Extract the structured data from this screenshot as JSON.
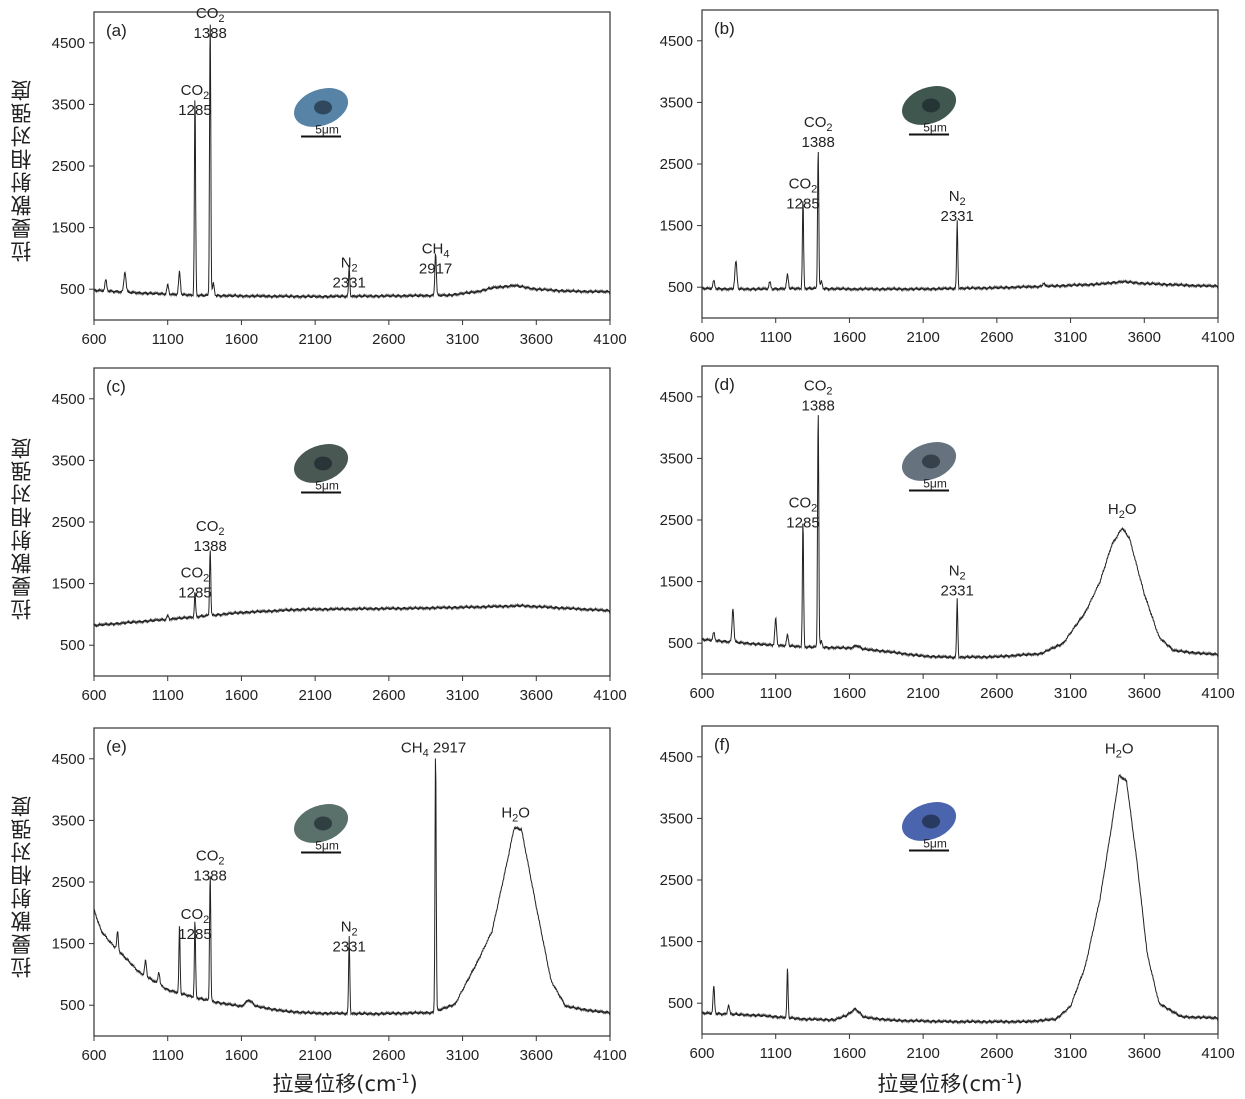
{
  "figure": {
    "ylabel": "拉曼散射相对强度",
    "xlabel_base": "拉曼位移(cm",
    "xlabel_sup": "-1",
    "xlabel_close": ")"
  },
  "chart_data": [
    {
      "type": "line",
      "panel": "(a)",
      "scale_label": "5μm",
      "xlim": [
        600,
        4100
      ],
      "ylim": [
        0,
        5000
      ],
      "xticks": [
        600,
        1100,
        1600,
        2100,
        2600,
        3100,
        3600,
        4100
      ],
      "yticks": [
        500,
        1500,
        2500,
        3500,
        4500
      ],
      "background": [
        [
          600,
          480
        ],
        [
          700,
          470
        ],
        [
          900,
          440
        ],
        [
          1100,
          420
        ],
        [
          1300,
          400
        ],
        [
          1600,
          390
        ],
        [
          2100,
          380
        ],
        [
          2600,
          390
        ],
        [
          3000,
          400
        ],
        [
          3200,
          460
        ],
        [
          3300,
          520
        ],
        [
          3450,
          560
        ],
        [
          3600,
          500
        ],
        [
          3800,
          470
        ],
        [
          4000,
          460
        ],
        [
          4100,
          460
        ]
      ],
      "peaks": [
        [
          680,
          180,
          6
        ],
        [
          810,
          330,
          7
        ],
        [
          1100,
          150,
          6
        ],
        [
          1180,
          370,
          6
        ],
        [
          1285,
          3250,
          4
        ],
        [
          1388,
          4550,
          4
        ],
        [
          1410,
          200,
          6
        ],
        [
          2331,
          500,
          4
        ],
        [
          2917,
          700,
          5
        ]
      ],
      "annotations": [
        {
          "species": "CO",
          "sub": "2",
          "shift": "1285",
          "x": 1285,
          "y": 3650
        },
        {
          "species": "CO",
          "sub": "2",
          "shift": "1388",
          "x": 1388,
          "y": 4900
        },
        {
          "species": "N",
          "sub": "2",
          "shift": "2331",
          "x": 2331,
          "y": 850
        },
        {
          "species": "CH",
          "sub": "4",
          "shift": "2917",
          "x": 2917,
          "y": 1080
        }
      ],
      "inclusion_color": "#3a6e96"
    },
    {
      "type": "line",
      "panel": "(b)",
      "scale_label": "5μm",
      "xlim": [
        600,
        4100
      ],
      "ylim": [
        0,
        5000
      ],
      "xticks": [
        600,
        1100,
        1600,
        2100,
        2600,
        3100,
        3600,
        4100
      ],
      "yticks": [
        500,
        1500,
        2500,
        3500,
        4500
      ],
      "background": [
        [
          600,
          480
        ],
        [
          800,
          470
        ],
        [
          1000,
          470
        ],
        [
          1300,
          480
        ],
        [
          1600,
          470
        ],
        [
          2100,
          470
        ],
        [
          2600,
          490
        ],
        [
          3000,
          520
        ],
        [
          3300,
          550
        ],
        [
          3450,
          590
        ],
        [
          3600,
          560
        ],
        [
          3800,
          540
        ],
        [
          4000,
          520
        ],
        [
          4100,
          520
        ]
      ],
      "peaks": [
        [
          680,
          130,
          6
        ],
        [
          830,
          450,
          7
        ],
        [
          1060,
          110,
          6
        ],
        [
          1180,
          230,
          6
        ],
        [
          1285,
          1450,
          4
        ],
        [
          1388,
          2300,
          4
        ],
        [
          1410,
          120,
          6
        ],
        [
          2331,
          1100,
          4
        ],
        [
          2917,
          60,
          6
        ]
      ],
      "annotations": [
        {
          "species": "CO",
          "sub": "2",
          "shift": "1285",
          "x": 1285,
          "y": 2100
        },
        {
          "species": "CO",
          "sub": "2",
          "shift": "1388",
          "x": 1388,
          "y": 3100
        },
        {
          "species": "N",
          "sub": "2",
          "shift": "2331",
          "x": 2331,
          "y": 1900
        }
      ],
      "inclusion_color": "#1e3a30"
    },
    {
      "type": "line",
      "panel": "(c)",
      "scale_label": "5μm",
      "xlim": [
        600,
        4100
      ],
      "ylim": [
        0,
        5000
      ],
      "xticks": [
        600,
        1100,
        1600,
        2100,
        2600,
        3100,
        3600,
        4100
      ],
      "yticks": [
        500,
        1500,
        2500,
        3500,
        4500
      ],
      "background": [
        [
          600,
          820
        ],
        [
          900,
          880
        ],
        [
          1200,
          940
        ],
        [
          1600,
          1030
        ],
        [
          2000,
          1080
        ],
        [
          2400,
          1090
        ],
        [
          2800,
          1100
        ],
        [
          3200,
          1120
        ],
        [
          3500,
          1140
        ],
        [
          3800,
          1100
        ],
        [
          4100,
          1060
        ]
      ],
      "peaks": [
        [
          1100,
          60,
          6
        ],
        [
          1285,
          400,
          4
        ],
        [
          1388,
          1100,
          4
        ]
      ],
      "annotations": [
        {
          "species": "CO",
          "sub": "2",
          "shift": "1285",
          "x": 1285,
          "y": 1600
        },
        {
          "species": "CO",
          "sub": "2",
          "shift": "1388",
          "x": 1388,
          "y": 2350
        }
      ],
      "inclusion_color": "#2a3b36"
    },
    {
      "type": "line",
      "panel": "(d)",
      "scale_label": "5μm",
      "xlim": [
        600,
        4100
      ],
      "ylim": [
        0,
        5000
      ],
      "xticks": [
        600,
        1100,
        1600,
        2100,
        2600,
        3100,
        3600,
        4100
      ],
      "yticks": [
        500,
        1500,
        2500,
        3500,
        4500
      ],
      "background": [
        [
          600,
          560
        ],
        [
          800,
          520
        ],
        [
          1000,
          480
        ],
        [
          1300,
          440
        ],
        [
          1600,
          420
        ],
        [
          1800,
          380
        ],
        [
          2100,
          290
        ],
        [
          2300,
          270
        ],
        [
          2600,
          280
        ],
        [
          2900,
          330
        ],
        [
          3050,
          500
        ],
        [
          3200,
          1000
        ],
        [
          3300,
          1500
        ],
        [
          3380,
          2100
        ],
        [
          3450,
          2370
        ],
        [
          3500,
          2200
        ],
        [
          3600,
          1300
        ],
        [
          3700,
          600
        ],
        [
          3800,
          380
        ],
        [
          4000,
          330
        ],
        [
          4100,
          320
        ]
      ],
      "peaks": [
        [
          680,
          130,
          6
        ],
        [
          810,
          550,
          6
        ],
        [
          1100,
          430,
          6
        ],
        [
          1180,
          180,
          6
        ],
        [
          1285,
          2050,
          4
        ],
        [
          1388,
          3900,
          4
        ],
        [
          1410,
          100,
          6
        ],
        [
          1650,
          50,
          20
        ],
        [
          2331,
          950,
          4
        ]
      ],
      "annotations": [
        {
          "species": "CO",
          "sub": "2",
          "shift": "1285",
          "x": 1285,
          "y": 2700
        },
        {
          "species": "CO",
          "sub": "2",
          "shift": "1388",
          "x": 1388,
          "y": 4600
        },
        {
          "species": "N",
          "sub": "2",
          "shift": "2331",
          "x": 2331,
          "y": 1600
        },
        {
          "species": "H",
          "sub": "2",
          "tail": "O",
          "shift": "",
          "x": 3450,
          "y": 2600
        }
      ],
      "inclusion_color": "#4b5a68"
    },
    {
      "type": "line",
      "panel": "(e)",
      "scale_label": "5μm",
      "xlim": [
        600,
        4100
      ],
      "ylim": [
        0,
        5000
      ],
      "xticks": [
        600,
        1100,
        1600,
        2100,
        2600,
        3100,
        3600,
        4100
      ],
      "yticks": [
        500,
        1500,
        2500,
        3500,
        4500
      ],
      "background": [
        [
          600,
          2050
        ],
        [
          650,
          1700
        ],
        [
          700,
          1550
        ],
        [
          800,
          1300
        ],
        [
          900,
          1050
        ],
        [
          1000,
          900
        ],
        [
          1100,
          750
        ],
        [
          1200,
          680
        ],
        [
          1300,
          620
        ],
        [
          1400,
          560
        ],
        [
          1500,
          520
        ],
        [
          1600,
          480
        ],
        [
          1650,
          590
        ],
        [
          1700,
          480
        ],
        [
          1900,
          400
        ],
        [
          2100,
          370
        ],
        [
          2500,
          360
        ],
        [
          2900,
          380
        ],
        [
          3050,
          520
        ],
        [
          3200,
          1200
        ],
        [
          3300,
          1700
        ],
        [
          3400,
          2800
        ],
        [
          3450,
          3380
        ],
        [
          3500,
          3350
        ],
        [
          3600,
          2100
        ],
        [
          3700,
          900
        ],
        [
          3800,
          480
        ],
        [
          4000,
          400
        ],
        [
          4100,
          380
        ]
      ],
      "peaks": [
        [
          760,
          300,
          5
        ],
        [
          950,
          250,
          6
        ],
        [
          1040,
          200,
          6
        ],
        [
          1180,
          1100,
          4
        ],
        [
          1285,
          1250,
          4
        ],
        [
          1388,
          2100,
          4
        ],
        [
          2331,
          1250,
          4
        ],
        [
          2917,
          4250,
          4
        ]
      ],
      "annotations": [
        {
          "species": "CO",
          "sub": "2",
          "shift": "1285",
          "x": 1285,
          "y": 1900
        },
        {
          "species": "CO",
          "sub": "2",
          "shift": "1388",
          "x": 1388,
          "y": 2850
        },
        {
          "species": "N",
          "sub": "2",
          "shift": "2331",
          "x": 2331,
          "y": 1700
        },
        {
          "species": "CH",
          "sub": "4",
          "shift": "2917",
          "x": 2917,
          "y": 4600,
          "inline": true
        },
        {
          "species": "H",
          "sub": "2",
          "tail": "O",
          "shift": "",
          "x": 3460,
          "y": 3550
        }
      ],
      "inclusion_color": "#3d5750"
    },
    {
      "type": "line",
      "panel": "(f)",
      "scale_label": "5μm",
      "xlim": [
        600,
        4100
      ],
      "ylim": [
        0,
        5000
      ],
      "xticks": [
        600,
        1100,
        1600,
        2100,
        2600,
        3100,
        3600,
        4100
      ],
      "yticks": [
        500,
        1500,
        2500,
        3500,
        4500
      ],
      "background": [
        [
          600,
          340
        ],
        [
          800,
          320
        ],
        [
          1000,
          300
        ],
        [
          1300,
          240
        ],
        [
          1500,
          230
        ],
        [
          1580,
          300
        ],
        [
          1640,
          410
        ],
        [
          1700,
          270
        ],
        [
          1900,
          220
        ],
        [
          2300,
          200
        ],
        [
          2800,
          200
        ],
        [
          3000,
          240
        ],
        [
          3100,
          450
        ],
        [
          3200,
          1100
        ],
        [
          3300,
          2200
        ],
        [
          3380,
          3400
        ],
        [
          3430,
          4200
        ],
        [
          3480,
          4100
        ],
        [
          3550,
          2800
        ],
        [
          3620,
          1300
        ],
        [
          3700,
          500
        ],
        [
          3850,
          280
        ],
        [
          4100,
          260
        ]
      ],
      "peaks": [
        [
          680,
          450,
          5
        ],
        [
          780,
          150,
          6
        ],
        [
          1180,
          800,
          4
        ]
      ],
      "annotations": [
        {
          "species": "H",
          "sub": "2",
          "tail": "O",
          "shift": "",
          "x": 3430,
          "y": 4550
        }
      ],
      "inclusion_color": "#2a4aa0"
    }
  ]
}
